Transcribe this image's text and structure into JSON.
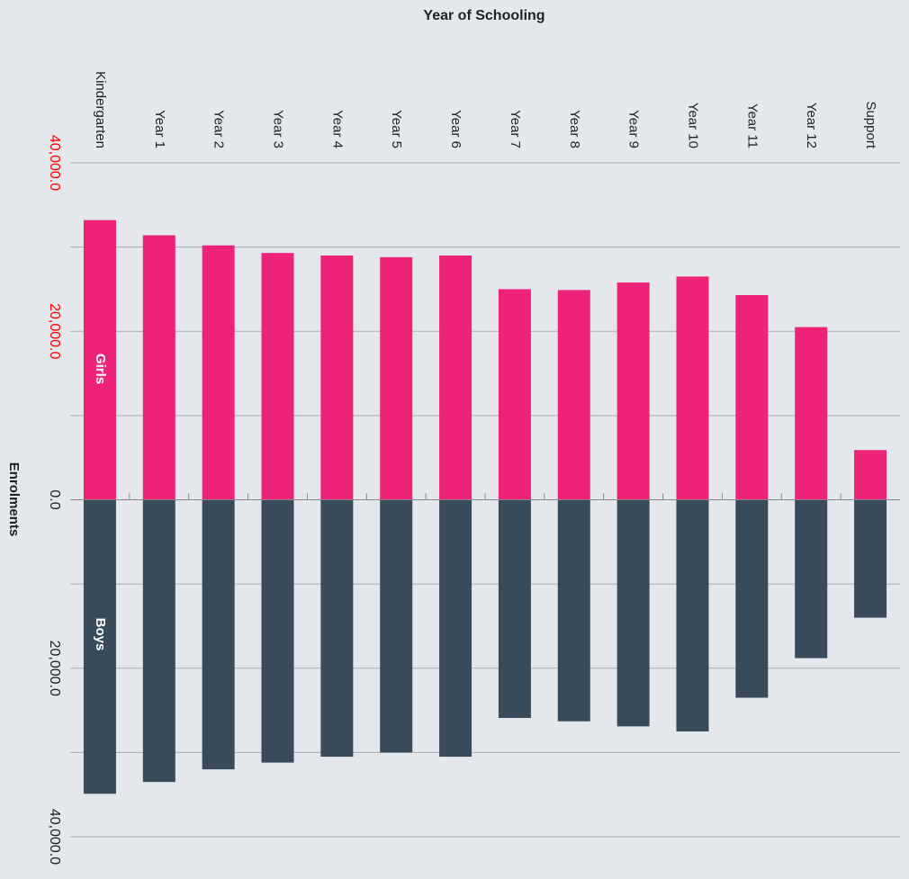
{
  "chart_data": {
    "type": "diverging-bar",
    "title": "Year of Schooling",
    "y_label": "Enrolments",
    "categories": [
      "Kindergarten",
      "Year 1",
      "Year 2",
      "Year 3",
      "Year 4",
      "Year 5",
      "Year 6",
      "Year 7",
      "Year 8",
      "Year 9",
      "Year 10",
      "Year 11",
      "Year 12",
      "Support"
    ],
    "series": [
      {
        "name": "Girls",
        "color": "#ec2376",
        "values": [
          33200,
          31400,
          30200,
          29300,
          29000,
          28800,
          29000,
          25000,
          24900,
          25800,
          26500,
          24300,
          20500,
          5900
        ]
      },
      {
        "name": "Boys",
        "color": "#394b5a",
        "values": [
          -34900,
          -33500,
          -32000,
          -31200,
          -30500,
          -30000,
          -30500,
          -25900,
          -26300,
          -26900,
          -27500,
          -23500,
          -18800,
          -14000
        ]
      }
    ],
    "ylim": [
      -40000,
      40000
    ],
    "yticks": [
      {
        "value": 40000,
        "label": "40,000.0",
        "color": "#ff0000"
      },
      {
        "value": 20000,
        "label": "20,000.0",
        "color": "#ff0000"
      },
      {
        "value": 0,
        "label": "0.0",
        "color": "#222222"
      },
      {
        "value": -20000,
        "label": "20,000.0",
        "color": "#222222"
      },
      {
        "value": -40000,
        "label": "40,000.0",
        "color": "#222222"
      }
    ],
    "minor_yticks": [
      30000,
      10000,
      -10000,
      -30000
    ],
    "grid": true
  }
}
